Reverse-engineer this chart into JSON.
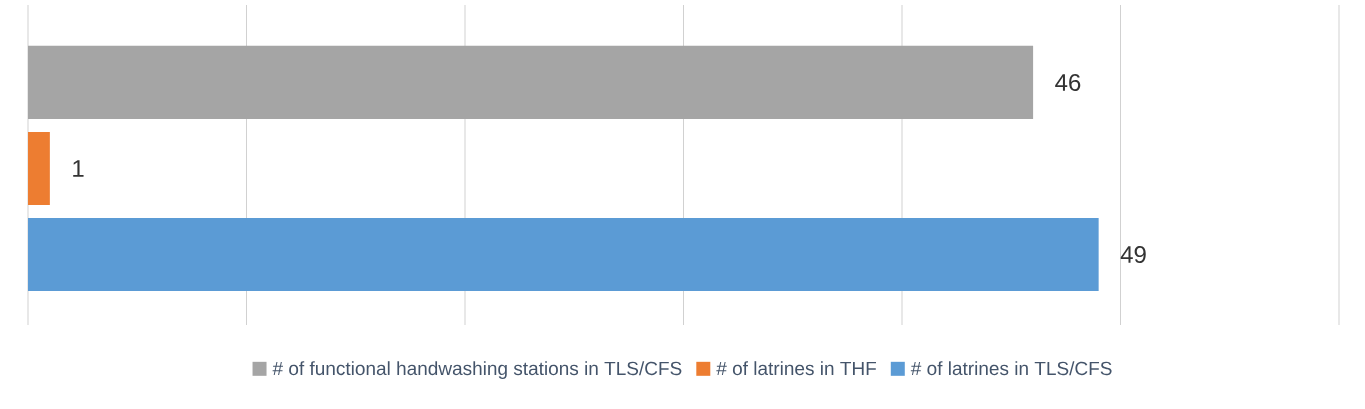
{
  "chart_data": {
    "type": "bar",
    "orientation": "horizontal",
    "categories": [
      null
    ],
    "series": [
      {
        "name": "# of functional handwashing stations in TLS/CFS",
        "color": "#a5a5a5",
        "values": [
          46
        ]
      },
      {
        "name": "# of latrines in THF",
        "color": "#ed7d31",
        "values": [
          1
        ]
      },
      {
        "name": "# of latrines in TLS/CFS",
        "color": "#5b9bd5",
        "values": [
          49
        ]
      }
    ],
    "xlim": [
      0,
      60
    ],
    "xticks": [
      {
        "value": 0,
        "label": null
      },
      {
        "value": 10,
        "label": null
      },
      {
        "value": 20,
        "label": null
      },
      {
        "value": 30,
        "label": null
      },
      {
        "value": 40,
        "label": null
      },
      {
        "value": 50,
        "label": null
      },
      {
        "value": 60,
        "label": null
      }
    ],
    "grid": "x",
    "legend": "bottom",
    "data_labels": true
  }
}
